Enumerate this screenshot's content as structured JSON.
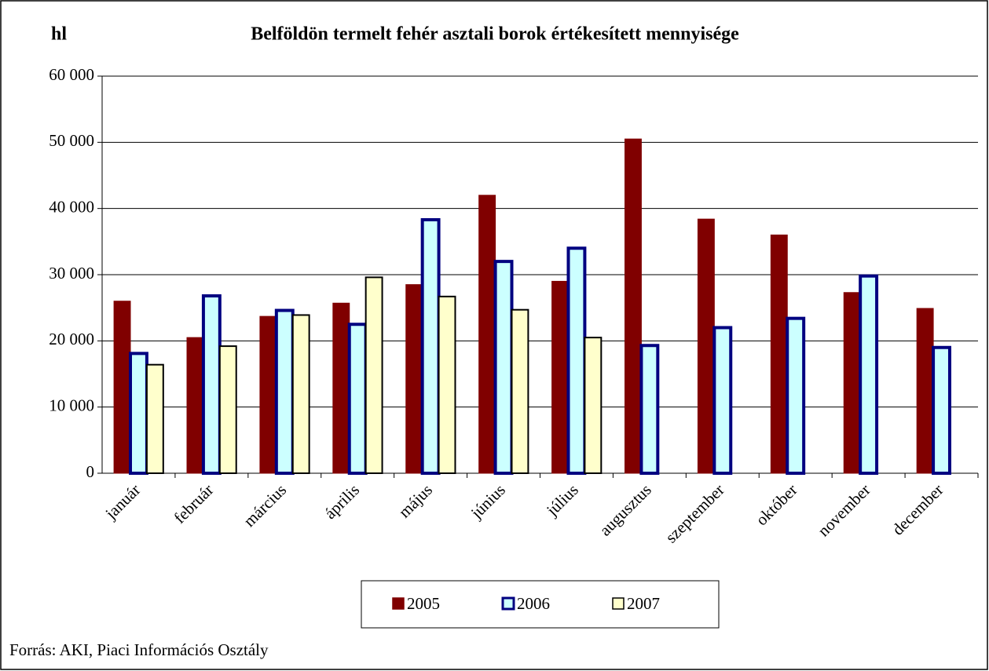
{
  "chart_data": {
    "type": "bar",
    "title": "Belföldön termelt fehér asztali borok értékesített mennyisége",
    "y_label": "hl",
    "source": "Forrás: AKI, Piaci Információs Osztály",
    "categories": [
      "január",
      "február",
      "március",
      "április",
      "május",
      "június",
      "július",
      "augusztus",
      "szeptember",
      "október",
      "november",
      "december"
    ],
    "series": [
      {
        "name": "2005",
        "color": "#800000",
        "edgecolor": "#800000",
        "values": [
          26000,
          20500,
          23700,
          25700,
          28500,
          42000,
          29000,
          50500,
          38400,
          36000,
          27300,
          24900
        ]
      },
      {
        "name": "2006",
        "color": "#ccffff",
        "edgecolor": "#000080",
        "values": [
          18100,
          26800,
          24600,
          22500,
          38300,
          32000,
          34000,
          19300,
          22000,
          23400,
          29800,
          19000
        ]
      },
      {
        "name": "2007",
        "color": "#ffffcc",
        "edgecolor": "#000000",
        "values": [
          16400,
          19200,
          23900,
          29600,
          26700,
          24700,
          20500,
          null,
          null,
          null,
          null,
          null
        ]
      }
    ],
    "ylim": [
      0,
      60000
    ],
    "yticks": [
      0,
      {
        "value": 10000,
        "label": "10 000"
      },
      {
        "value": 20000,
        "label": "20 000"
      },
      {
        "value": 30000,
        "label": "30 000"
      },
      {
        "value": 40000,
        "label": "40 000"
      },
      {
        "value": 50000,
        "label": "50 000"
      },
      {
        "value": 60000,
        "label": "60 000"
      }
    ],
    "grid": true,
    "legend": "bottom"
  }
}
